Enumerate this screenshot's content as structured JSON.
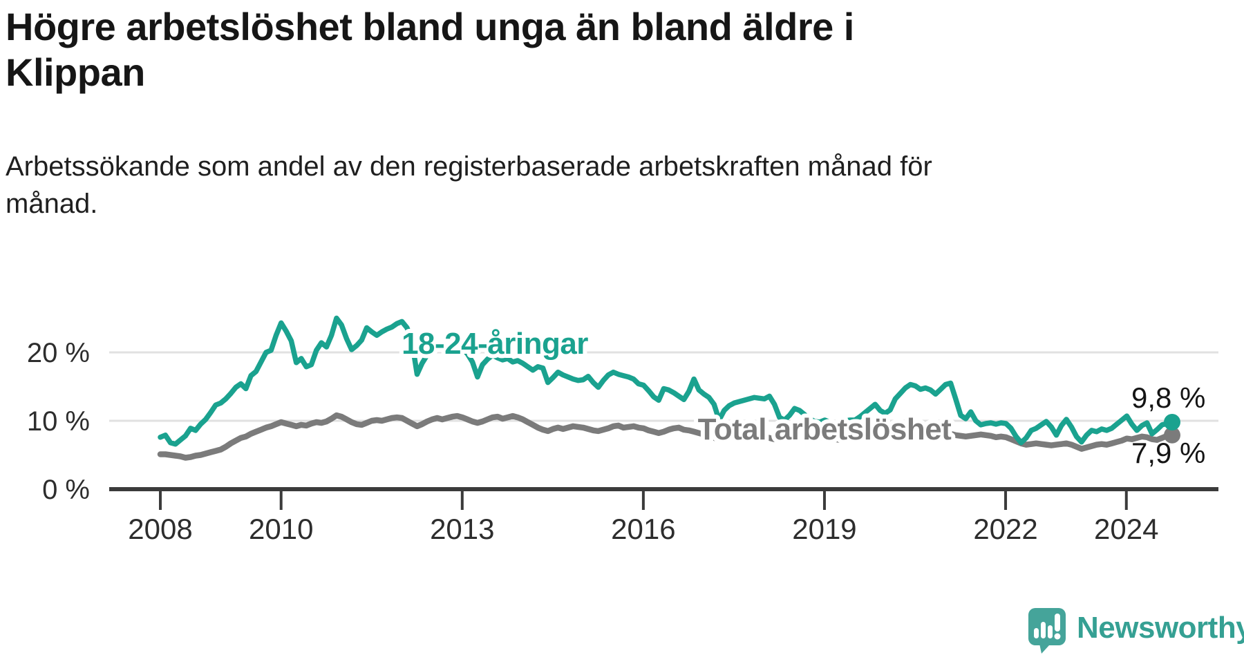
{
  "page": {
    "title": "Högre arbetslöshet bland unga än bland äldre i Klippan",
    "subtitle": "Arbetssökande som andel av den registerbaserade arbetskraften månad för månad."
  },
  "colors": {
    "teal_line": "#1aa28f",
    "gray_line": "#7b7b7b",
    "axis": "#3b3b3b",
    "grid": "#e1e1e1",
    "tick_text": "#2d2d2d",
    "annotation_text": "#141414",
    "halo": "#ffffff",
    "logo_teal": "#45a49a",
    "wordmark_teal": "#35a093"
  },
  "branding": {
    "wordmark": "Newsworthy",
    "logo_icon": "newsworthy-speech-bubble-bar-chart-icon"
  },
  "chart_data": {
    "type": "line",
    "title": "Högre arbetslöshet bland unga än bland äldre i Klippan",
    "xlabel": "",
    "ylabel": "Arbetssökande som andel av den registerbaserade arbetskraften",
    "x_start": "2008-01",
    "x_end": "2024-10",
    "x_interval": "monthly",
    "x_tick_years": [
      2008,
      2010,
      2013,
      2016,
      2019,
      2022,
      2024
    ],
    "y_ticks": [
      {
        "value": 0,
        "label": "0 %"
      },
      {
        "value": 10,
        "label": "10 %"
      },
      {
        "value": 20,
        "label": "20 %"
      }
    ],
    "ylim": [
      0,
      26
    ],
    "grid": "horizontal gridlines at 10 and 20, legend as inline labels",
    "series": [
      {
        "name": "Total arbetslöshet",
        "end_label": "7,9 %",
        "end_value": 7.9,
        "values": [
          5.1,
          5.1,
          5.0,
          4.9,
          4.8,
          4.6,
          4.7,
          4.9,
          5.0,
          5.2,
          5.4,
          5.6,
          5.8,
          6.2,
          6.7,
          7.1,
          7.5,
          7.7,
          8.1,
          8.4,
          8.7,
          9.0,
          9.2,
          9.5,
          9.8,
          9.6,
          9.4,
          9.2,
          9.4,
          9.3,
          9.6,
          9.8,
          9.7,
          9.9,
          10.3,
          10.8,
          10.6,
          10.2,
          9.8,
          9.5,
          9.4,
          9.7,
          10.0,
          10.1,
          10.0,
          10.2,
          10.4,
          10.5,
          10.4,
          10.0,
          9.6,
          9.2,
          9.5,
          9.9,
          10.2,
          10.4,
          10.2,
          10.4,
          10.6,
          10.7,
          10.5,
          10.2,
          9.9,
          9.7,
          9.9,
          10.2,
          10.5,
          10.6,
          10.3,
          10.5,
          10.7,
          10.5,
          10.2,
          9.8,
          9.4,
          9.0,
          8.7,
          8.5,
          8.8,
          9.0,
          8.8,
          9.0,
          9.2,
          9.1,
          9.0,
          8.8,
          8.6,
          8.5,
          8.7,
          8.9,
          9.2,
          9.3,
          9.0,
          9.1,
          9.2,
          9.0,
          8.9,
          8.6,
          8.4,
          8.2,
          8.4,
          8.7,
          8.9,
          9.0,
          8.7,
          8.6,
          8.4,
          8.2,
          8.0,
          7.8,
          7.5,
          7.3,
          7.4,
          7.6,
          7.8,
          7.7,
          7.5,
          7.4,
          7.5,
          7.6,
          7.7,
          7.5,
          7.3,
          7.2,
          7.3,
          7.5,
          7.7,
          7.6,
          7.4,
          7.3,
          7.4,
          7.5,
          7.6,
          7.5,
          7.3,
          7.2,
          7.4,
          7.6,
          7.8,
          7.9,
          7.7,
          7.8,
          7.9,
          8.0,
          8.1,
          8.0,
          8.2,
          8.5,
          8.7,
          8.9,
          9.0,
          8.9,
          8.7,
          8.6,
          8.5,
          8.4,
          8.3,
          8.1,
          7.9,
          7.8,
          7.7,
          7.8,
          7.9,
          8.0,
          7.9,
          7.8,
          7.6,
          7.7,
          7.6,
          7.3,
          7.0,
          6.7,
          6.5,
          6.6,
          6.7,
          6.6,
          6.5,
          6.4,
          6.5,
          6.6,
          6.7,
          6.5,
          6.2,
          5.9,
          6.1,
          6.3,
          6.5,
          6.6,
          6.5,
          6.7,
          6.9,
          7.1,
          7.4,
          7.3,
          7.5,
          7.7,
          7.6,
          7.3,
          7.2,
          7.5,
          7.8,
          7.9
        ]
      },
      {
        "name": "18-24-åringar",
        "end_label": "9,8 %",
        "end_value": 9.8,
        "values": [
          7.6,
          7.9,
          6.8,
          6.6,
          7.2,
          7.8,
          8.9,
          8.6,
          9.5,
          10.2,
          11.2,
          12.3,
          12.6,
          13.2,
          14.0,
          14.9,
          15.4,
          14.7,
          16.6,
          17.2,
          18.6,
          20.0,
          20.3,
          22.5,
          24.3,
          23.1,
          21.7,
          18.5,
          19.1,
          17.9,
          18.2,
          20.3,
          21.4,
          20.8,
          22.5,
          25.0,
          24.0,
          22.0,
          20.4,
          21.0,
          21.8,
          23.6,
          23.0,
          22.5,
          23.0,
          23.4,
          23.7,
          24.2,
          24.5,
          23.6,
          21.5,
          16.8,
          18.4,
          19.6,
          20.6,
          21.0,
          20.6,
          20.1,
          20.4,
          20.9,
          20.5,
          19.8,
          18.6,
          16.4,
          18.2,
          19.0,
          19.6,
          19.2,
          18.9,
          19.1,
          18.6,
          18.8,
          18.4,
          17.9,
          17.4,
          17.9,
          17.7,
          15.6,
          16.3,
          17.1,
          16.7,
          16.4,
          16.1,
          15.9,
          16.0,
          16.5,
          15.6,
          14.9,
          15.9,
          16.7,
          17.1,
          16.8,
          16.6,
          16.4,
          16.1,
          15.4,
          15.2,
          14.4,
          13.5,
          13.0,
          14.7,
          14.5,
          14.1,
          13.6,
          13.1,
          14.3,
          16.1,
          14.5,
          13.9,
          13.4,
          12.4,
          10.1,
          11.5,
          12.2,
          12.6,
          12.8,
          13.0,
          13.2,
          13.4,
          13.3,
          13.2,
          13.6,
          12.4,
          10.5,
          10.1,
          10.8,
          11.8,
          11.5,
          10.9,
          10.3,
          9.9,
          9.8,
          10.1,
          9.8,
          9.4,
          9.8,
          10.0,
          10.1,
          10.1,
          10.6,
          11.2,
          11.8,
          12.4,
          11.5,
          11.1,
          11.6,
          13.2,
          14.0,
          14.8,
          15.3,
          15.1,
          14.6,
          14.8,
          14.5,
          13.9,
          14.6,
          15.3,
          15.5,
          13.2,
          10.8,
          10.3,
          11.3,
          10.0,
          9.4,
          9.6,
          9.7,
          9.5,
          9.7,
          9.6,
          8.9,
          7.7,
          6.8,
          7.5,
          8.6,
          8.9,
          9.4,
          9.9,
          9.1,
          7.9,
          9.3,
          10.2,
          9.1,
          7.7,
          6.9,
          7.9,
          8.6,
          8.4,
          8.8,
          8.6,
          8.9,
          9.5,
          10.1,
          10.7,
          9.5,
          8.6,
          9.3,
          9.7,
          8.1,
          8.7,
          9.4,
          9.6,
          9.8
        ]
      }
    ]
  }
}
